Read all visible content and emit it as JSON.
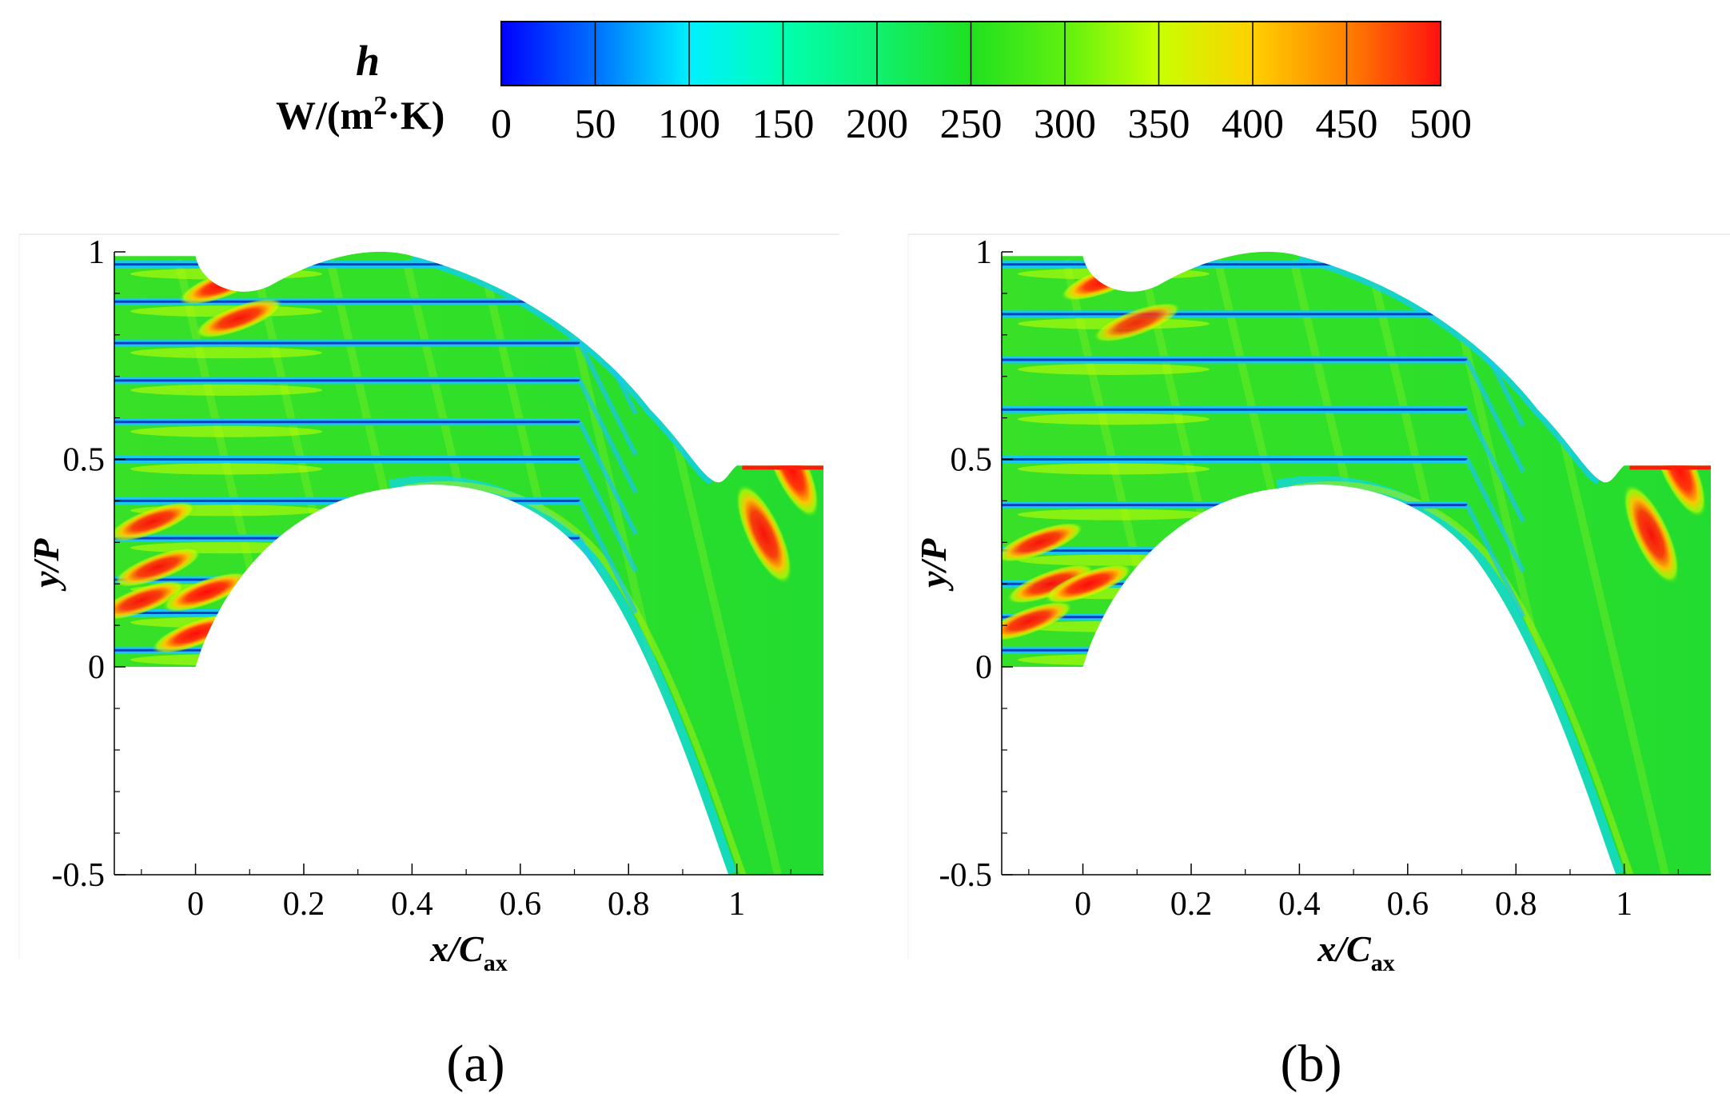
{
  "colorbar": {
    "symbol": "h",
    "unit_main": "W/(m",
    "unit_sup": "2",
    "unit_tail": "·K)",
    "ticks": [
      "0",
      "50",
      "100",
      "150",
      "200",
      "250",
      "300",
      "350",
      "400",
      "450",
      "500"
    ],
    "range": [
      0,
      500
    ],
    "colors": [
      "#0000ff",
      "#0070ff",
      "#00f0ff",
      "#00ffb0",
      "#10f070",
      "#20e020",
      "#60f010",
      "#c8ff00",
      "#ffd000",
      "#ff8000",
      "#ff1010"
    ]
  },
  "chart_data": [
    {
      "type": "heatmap",
      "panel_label": "(a)",
      "quantity": "heat transfer coefficient h, W/(m²·K)",
      "xlabel_main": "x/C",
      "xlabel_sub": "ax",
      "ylabel": "y/P",
      "xlim": [
        -0.15,
        1.16
      ],
      "ylim": [
        -0.5,
        1
      ],
      "xticks": [
        0,
        0.2,
        0.4,
        0.6,
        0.8,
        1
      ],
      "xtick_labels": [
        "0",
        "0.2",
        "0.4",
        "0.6",
        "0.8",
        "1"
      ],
      "yticks": [
        -0.5,
        0,
        0.5,
        1
      ],
      "ytick_labels": [
        "-0.5",
        "0",
        "0.5",
        "1"
      ],
      "film_row_y": [
        0.97,
        0.88,
        0.78,
        0.69,
        0.59,
        0.5,
        0.4,
        0.31,
        0.21,
        0.13,
        0.04
      ],
      "hotspots": [
        {
          "x": 0.05,
          "y": 0.92,
          "h": 500
        },
        {
          "x": 0.08,
          "y": 0.84,
          "h": 480
        },
        {
          "x": -0.08,
          "y": 0.35,
          "h": 480
        },
        {
          "x": -0.07,
          "y": 0.24,
          "h": 480
        },
        {
          "x": -0.1,
          "y": 0.16,
          "h": 480
        },
        {
          "x": 0.02,
          "y": 0.18,
          "h": 500
        },
        {
          "x": 0.0,
          "y": 0.08,
          "h": 500
        },
        {
          "x": 1.05,
          "y": 0.32,
          "h": 480
        },
        {
          "x": 1.1,
          "y": 0.48,
          "h": 500
        }
      ]
    },
    {
      "type": "heatmap",
      "panel_label": "(b)",
      "quantity": "heat transfer coefficient h, W/(m²·K)",
      "xlabel_main": "x/C",
      "xlabel_sub": "ax",
      "ylabel": "y/P",
      "xlim": [
        -0.15,
        1.16
      ],
      "ylim": [
        -0.5,
        1
      ],
      "xticks": [
        0,
        0.2,
        0.4,
        0.6,
        0.8,
        1
      ],
      "xtick_labels": [
        "0",
        "0.2",
        "0.4",
        "0.6",
        "0.8",
        "1"
      ],
      "yticks": [
        -0.5,
        0,
        0.5,
        1
      ],
      "ytick_labels": [
        "-0.5",
        "0",
        "0.5",
        "1"
      ],
      "film_row_y": [
        0.97,
        0.85,
        0.74,
        0.62,
        0.5,
        0.39,
        0.28,
        0.2,
        0.12,
        0.04
      ],
      "hotspots": [
        {
          "x": 0.04,
          "y": 0.93,
          "h": 500
        },
        {
          "x": 0.1,
          "y": 0.83,
          "h": 430
        },
        {
          "x": -0.08,
          "y": 0.3,
          "h": 480
        },
        {
          "x": -0.06,
          "y": 0.2,
          "h": 480
        },
        {
          "x": 0.01,
          "y": 0.2,
          "h": 500
        },
        {
          "x": -0.1,
          "y": 0.11,
          "h": 480
        },
        {
          "x": 1.05,
          "y": 0.32,
          "h": 480
        },
        {
          "x": 1.1,
          "y": 0.48,
          "h": 500
        }
      ]
    }
  ]
}
